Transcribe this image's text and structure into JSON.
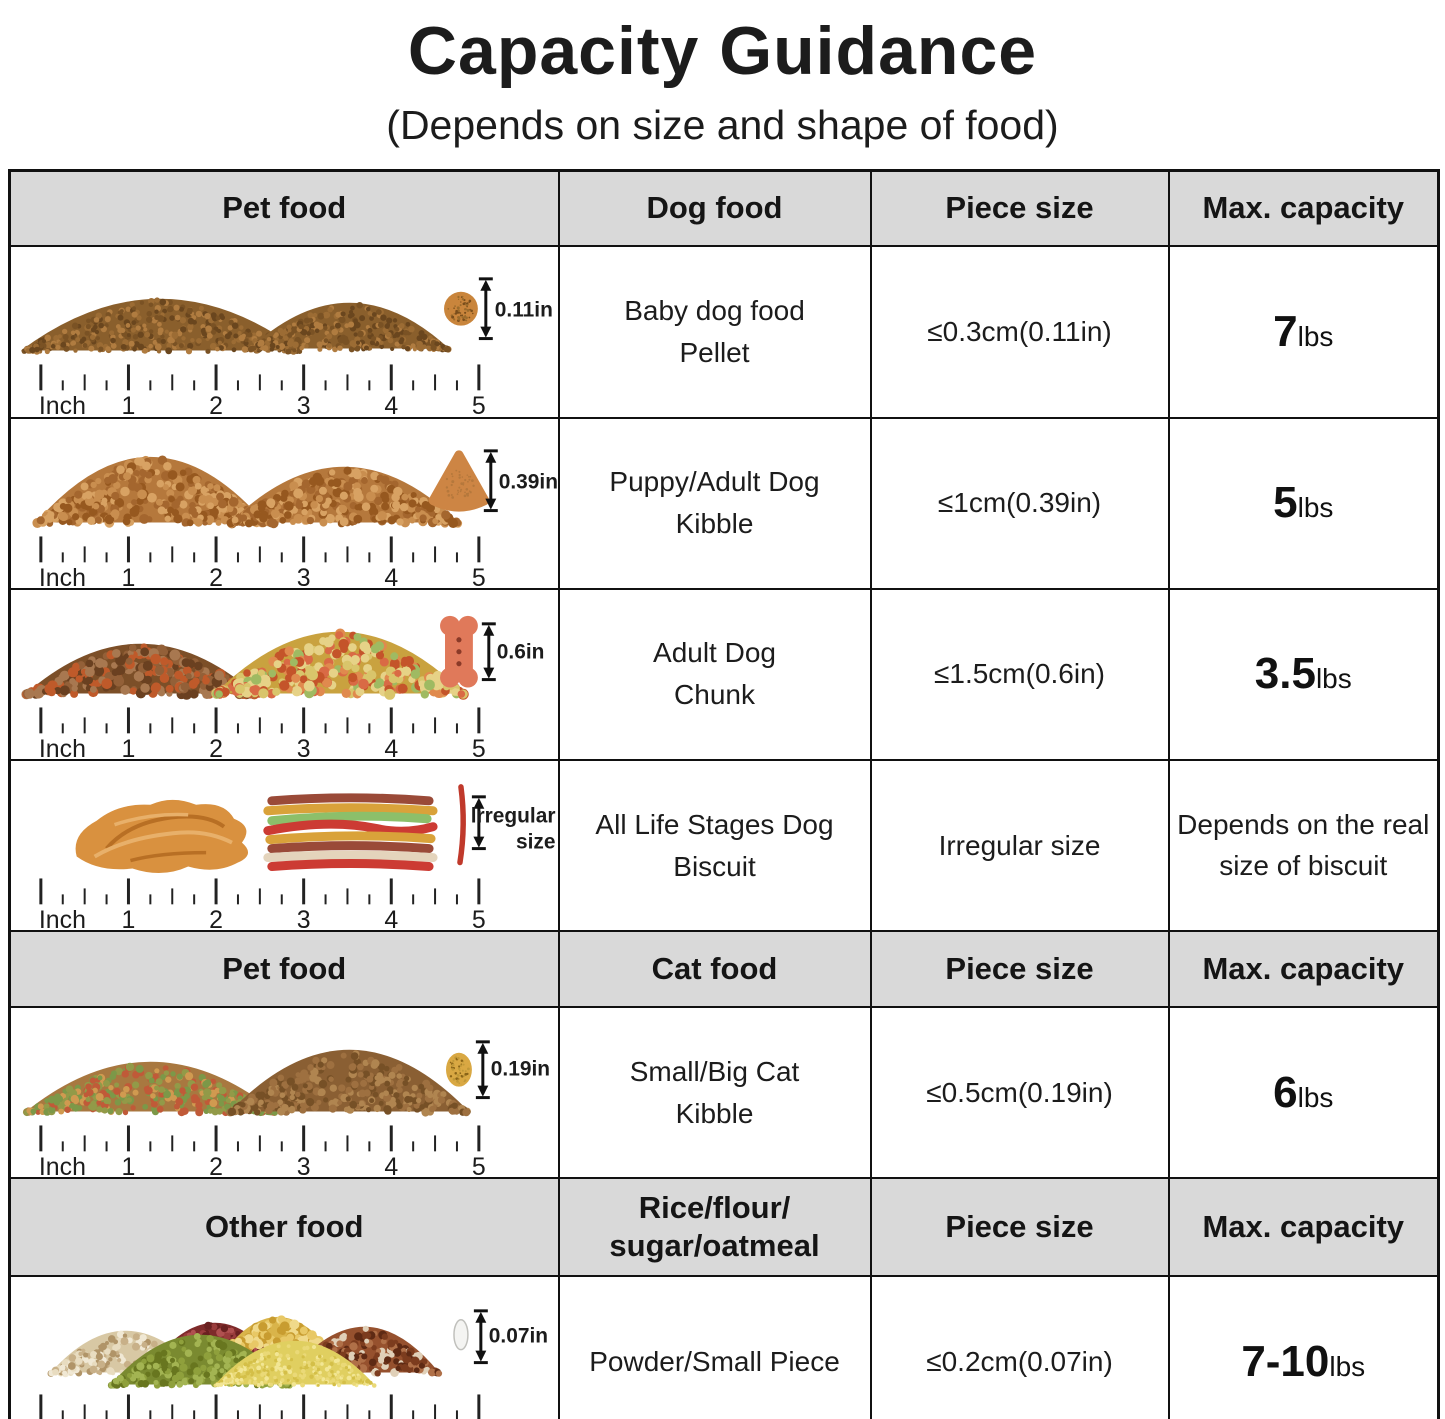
{
  "title": "Capacity Guidance",
  "subtitle": "(Depends on size and shape of food)",
  "ruler": {
    "unit": "Inch",
    "marks": [
      "1",
      "2",
      "3",
      "4",
      "5"
    ]
  },
  "sections": [
    {
      "header": {
        "col1": "Pet food",
        "col2": "Dog food",
        "col3": "Piece size",
        "col4": "Max. capacity"
      },
      "rows": [
        {
          "name1": "Baby dog food",
          "name2": "Pellet",
          "size": "≤0.3cm(0.11in)",
          "cap": "7",
          "cap_unit": "lbs",
          "image": {
            "icon": "baby-pellet-piles-icon",
            "measure": "0.11in",
            "palette": [
              "#8a5f2c",
              "#9c6c34",
              "#7a5224",
              "#b07c40",
              "#6a461e"
            ],
            "speckle": [
              "#8a5a22",
              "#9c6c2c",
              "#7a4e1c"
            ]
          }
        },
        {
          "name1": "Puppy/Adult Dog",
          "name2": "Kibble",
          "size": "≤1cm(0.39in)",
          "cap": "5",
          "cap_unit": "lbs",
          "image": {
            "icon": "kibble-piles-icon",
            "measure": "0.39in",
            "palette": [
              "#b5783c",
              "#c98e4f",
              "#a4662e",
              "#d8a263",
              "#96581f"
            ],
            "speckle": [
              "#9c5e26",
              "#b5783c"
            ]
          }
        },
        {
          "name1": "Adult Dog",
          "name2": "Chunk",
          "size": "≤1.5cm(0.6in)",
          "cap": "3.5",
          "cap_unit": "lbs",
          "image": {
            "icon": "chunk-treats-piles-icon",
            "measure": "0.6in",
            "palette": [
              "#7c4f28",
              "#936038",
              "#6a4020",
              "#a87850",
              "#bf5a2a"
            ],
            "palette2": [
              "#c9a23f",
              "#d9c56b",
              "#e08a4e",
              "#9fba62",
              "#d96a45",
              "#e6d287",
              "#c4542a"
            ]
          }
        },
        {
          "name1": "All Life Stages Dog",
          "name2": "Biscuit",
          "size": "Irregular size",
          "cap_text": "Depends on the real size of biscuit",
          "image": {
            "icon": "biscuit-sticks-icon",
            "measure1": "lrregular",
            "measure2": "size"
          }
        }
      ]
    },
    {
      "header": {
        "col1": "Pet food",
        "col2": "Cat food",
        "col3": "Piece size",
        "col4": "Max. capacity"
      },
      "rows": [
        {
          "name1": "Small/Big Cat",
          "name2": "Kibble",
          "size": "≤0.5cm(0.19in)",
          "cap": "6",
          "cap_unit": "lbs",
          "image": {
            "icon": "cat-kibble-piles-icon",
            "measure": "0.19in",
            "palette": [
              "#a87840",
              "#c05a38",
              "#929a48",
              "#d09a50",
              "#7c9848"
            ],
            "palette2": [
              "#8a5f33",
              "#9e7040",
              "#765026",
              "#b08550"
            ],
            "speckle": [
              "#a87820",
              "#c09838",
              "#8a6418"
            ]
          }
        }
      ]
    },
    {
      "header": {
        "col1": "Other food",
        "col2_line1": "Rice/flour/",
        "col2_line2": "sugar/oatmeal",
        "col3": "Piece size",
        "col4": "Max. capacity"
      },
      "rows": [
        {
          "name1": "Powder/Small Piece",
          "size": "≤0.2cm(0.07in)",
          "cap": "7-10",
          "cap_unit": "lbs",
          "image": {
            "icon": "grains-piles-icon",
            "measure": "0.07in",
            "palettes": {
              "beige": [
                "#d8c8a4",
                "#e8dcc0",
                "#f0e8d4",
                "#b09468",
                "#c8b088"
              ],
              "red": [
                "#7e2a2a",
                "#9a3c3c",
                "#6a2020",
                "#b05050"
              ],
              "green": [
                "#7a8a30",
                "#8fa03c",
                "#68761f",
                "#a3b452"
              ],
              "gold": [
                "#d9b44a",
                "#e8c866",
                "#c89c30",
                "#f0d98a"
              ],
              "paleyellow": [
                "#e0cf60",
                "#ead977",
                "#d4bf48",
                "#f2e694"
              ],
              "brown": [
                "#96512e",
                "#7c3c1e",
                "#b07048",
                "#e0d0b8",
                "#5e2a14"
              ]
            }
          }
        }
      ]
    }
  ]
}
